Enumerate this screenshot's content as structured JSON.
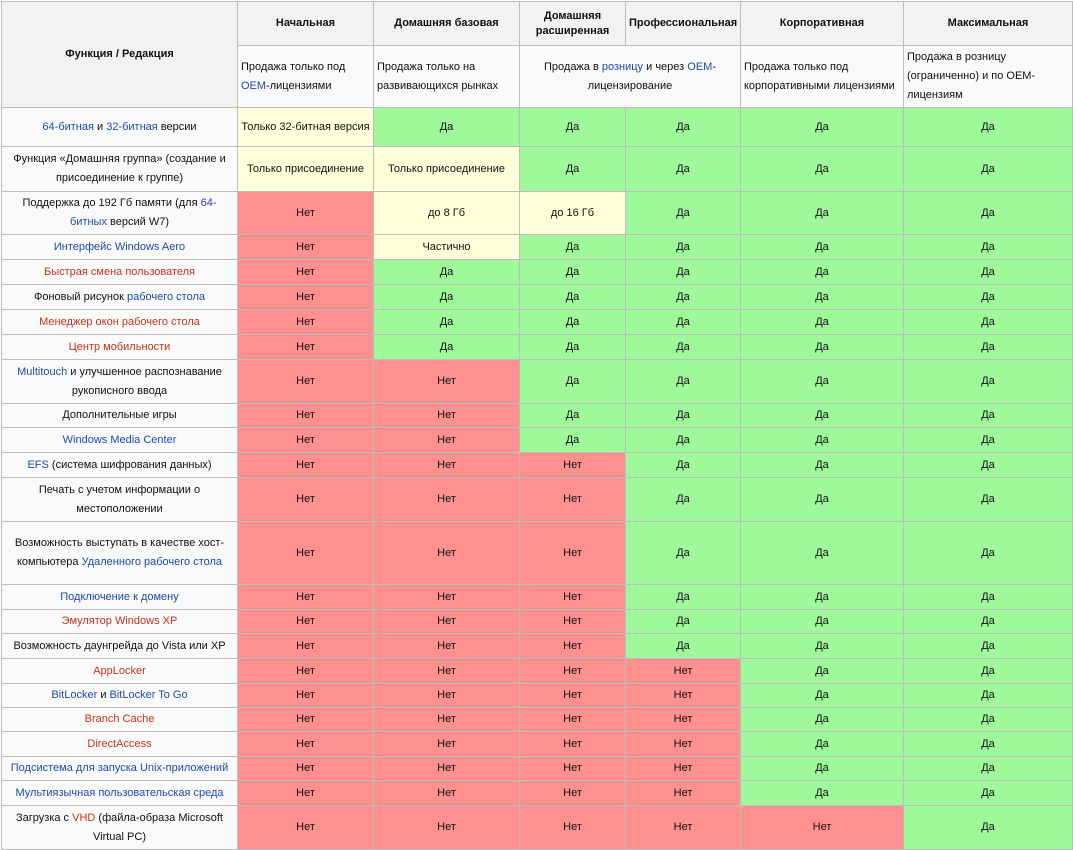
{
  "header": {
    "feature_col": "Функция / Редакция",
    "editions": [
      "Начальная",
      "Домашняя базовая",
      "Домашняя расширенная",
      "Профессиональная",
      "Корпоративная",
      "Максимальная"
    ],
    "notes": [
      [
        {
          "t": "Продажа только под "
        },
        {
          "t": "OEM",
          "c": "lnk"
        },
        {
          "t": "-лицензиями"
        }
      ],
      [
        {
          "t": "Продажа только на развивающихся рынках"
        }
      ],
      [
        {
          "t": "Продажа в "
        },
        {
          "t": "розницу",
          "c": "lnk"
        },
        {
          "t": " и через "
        },
        {
          "t": "OEM",
          "c": "lnk"
        },
        {
          "t": "-лицензирование"
        }
      ],
      [
        {
          "t": "Продажа только под корпоративными лицензиями"
        }
      ],
      [
        {
          "t": "Продажа в розницу (ограниченно) и по OEM-лицензиям"
        }
      ]
    ]
  },
  "rows": [
    {
      "h": 39,
      "feature": [
        {
          "t": "64-битная",
          "c": "lnk"
        },
        {
          "t": " и "
        },
        {
          "t": "32-битная",
          "c": "lnk"
        },
        {
          "t": " версии"
        }
      ],
      "cells": [
        {
          "v": "Только 32-битная версия",
          "s": "p"
        },
        {
          "v": "Да",
          "s": "y"
        },
        {
          "v": "Да",
          "s": "y"
        },
        {
          "v": "Да",
          "s": "y"
        },
        {
          "v": "Да",
          "s": "y"
        },
        {
          "v": "Да",
          "s": "y"
        }
      ]
    },
    {
      "h": 45,
      "feature": [
        {
          "t": "Функция «Домашняя группа» (создание и присоединение к группе)"
        }
      ],
      "cells": [
        {
          "v": "Только присоединение",
          "s": "p"
        },
        {
          "v": "Только присоединение",
          "s": "p"
        },
        {
          "v": "Да",
          "s": "y"
        },
        {
          "v": "Да",
          "s": "y"
        },
        {
          "v": "Да",
          "s": "y"
        },
        {
          "v": "Да",
          "s": "y"
        }
      ]
    },
    {
      "h": 42,
      "feature": [
        {
          "t": "Поддержка до 192 Гб памяти (для "
        },
        {
          "t": "64-битных",
          "c": "lnk"
        },
        {
          "t": " версий W7)"
        }
      ],
      "cells": [
        {
          "v": "Нет",
          "s": "n"
        },
        {
          "v": "до 8 Гб",
          "s": "p"
        },
        {
          "v": "до 16 Гб",
          "s": "p"
        },
        {
          "v": "Да",
          "s": "y"
        },
        {
          "v": "Да",
          "s": "y"
        },
        {
          "v": "Да",
          "s": "y"
        }
      ]
    },
    {
      "h": 25,
      "feature": [
        {
          "t": "Интерфейс Windows Aero",
          "c": "lnk"
        }
      ],
      "cells": [
        {
          "v": "Нет",
          "s": "n"
        },
        {
          "v": "Частично",
          "s": "p"
        },
        {
          "v": "Да",
          "s": "y"
        },
        {
          "v": "Да",
          "s": "y"
        },
        {
          "v": "Да",
          "s": "y"
        },
        {
          "v": "Да",
          "s": "y"
        }
      ]
    },
    {
      "h": 25,
      "feature": [
        {
          "t": "Быстрая смена пользователя",
          "c": "red"
        }
      ],
      "cells": [
        {
          "v": "Нет",
          "s": "n"
        },
        {
          "v": "Да",
          "s": "y"
        },
        {
          "v": "Да",
          "s": "y"
        },
        {
          "v": "Да",
          "s": "y"
        },
        {
          "v": "Да",
          "s": "y"
        },
        {
          "v": "Да",
          "s": "y"
        }
      ]
    },
    {
      "h": 25,
      "feature": [
        {
          "t": "Фоновый рисунок "
        },
        {
          "t": "рабочего стола",
          "c": "lnk"
        }
      ],
      "cells": [
        {
          "v": "Нет",
          "s": "n"
        },
        {
          "v": "Да",
          "s": "y"
        },
        {
          "v": "Да",
          "s": "y"
        },
        {
          "v": "Да",
          "s": "y"
        },
        {
          "v": "Да",
          "s": "y"
        },
        {
          "v": "Да",
          "s": "y"
        }
      ]
    },
    {
      "h": 25,
      "feature": [
        {
          "t": "Менеджер окон рабочего стола",
          "c": "red"
        }
      ],
      "cells": [
        {
          "v": "Нет",
          "s": "n"
        },
        {
          "v": "Да",
          "s": "y"
        },
        {
          "v": "Да",
          "s": "y"
        },
        {
          "v": "Да",
          "s": "y"
        },
        {
          "v": "Да",
          "s": "y"
        },
        {
          "v": "Да",
          "s": "y"
        }
      ]
    },
    {
      "h": 25,
      "feature": [
        {
          "t": "Центр мобильности",
          "c": "red"
        }
      ],
      "cells": [
        {
          "v": "Нет",
          "s": "n"
        },
        {
          "v": "Да",
          "s": "y"
        },
        {
          "v": "Да",
          "s": "y"
        },
        {
          "v": "Да",
          "s": "y"
        },
        {
          "v": "Да",
          "s": "y"
        },
        {
          "v": "Да",
          "s": "y"
        }
      ]
    },
    {
      "h": 44,
      "feature": [
        {
          "t": "Multitouch",
          "c": "lnk"
        },
        {
          "t": " и улучшенное распознавание рукописного ввода"
        }
      ],
      "cells": [
        {
          "v": "Нет",
          "s": "n"
        },
        {
          "v": "Нет",
          "s": "n"
        },
        {
          "v": "Да",
          "s": "y"
        },
        {
          "v": "Да",
          "s": "y"
        },
        {
          "v": "Да",
          "s": "y"
        },
        {
          "v": "Да",
          "s": "y"
        }
      ]
    },
    {
      "h": 24,
      "feature": [
        {
          "t": "Дополнительные игры"
        }
      ],
      "cells": [
        {
          "v": "Нет",
          "s": "n"
        },
        {
          "v": "Нет",
          "s": "n"
        },
        {
          "v": "Да",
          "s": "y"
        },
        {
          "v": "Да",
          "s": "y"
        },
        {
          "v": "Да",
          "s": "y"
        },
        {
          "v": "Да",
          "s": "y"
        }
      ]
    },
    {
      "h": 25,
      "feature": [
        {
          "t": "Windows Media Center",
          "c": "lnk"
        }
      ],
      "cells": [
        {
          "v": "Нет",
          "s": "n"
        },
        {
          "v": "Нет",
          "s": "n"
        },
        {
          "v": "Да",
          "s": "y"
        },
        {
          "v": "Да",
          "s": "y"
        },
        {
          "v": "Да",
          "s": "y"
        },
        {
          "v": "Да",
          "s": "y"
        }
      ]
    },
    {
      "h": 25,
      "feature": [
        {
          "t": "EFS",
          "c": "lnk"
        },
        {
          "t": " (система шифрования данных)"
        }
      ],
      "cells": [
        {
          "v": "Нет",
          "s": "n"
        },
        {
          "v": "Нет",
          "s": "n"
        },
        {
          "v": "Нет",
          "s": "n"
        },
        {
          "v": "Да",
          "s": "y"
        },
        {
          "v": "Да",
          "s": "y"
        },
        {
          "v": "Да",
          "s": "y"
        }
      ]
    },
    {
      "h": 44,
      "feature": [
        {
          "t": "Печать с учетом информации о местоположении"
        }
      ],
      "cells": [
        {
          "v": "Нет",
          "s": "n"
        },
        {
          "v": "Нет",
          "s": "n"
        },
        {
          "v": "Нет",
          "s": "n"
        },
        {
          "v": "Да",
          "s": "y"
        },
        {
          "v": "Да",
          "s": "y"
        },
        {
          "v": "Да",
          "s": "y"
        }
      ]
    },
    {
      "h": 63,
      "feature": [
        {
          "t": "Возможность выступать в качестве хост-компьютера "
        },
        {
          "t": "Удаленного рабочего стола",
          "c": "lnk"
        }
      ],
      "cells": [
        {
          "v": "Нет",
          "s": "n"
        },
        {
          "v": "Нет",
          "s": "n"
        },
        {
          "v": "Нет",
          "s": "n"
        },
        {
          "v": "Да",
          "s": "y"
        },
        {
          "v": "Да",
          "s": "y"
        },
        {
          "v": "Да",
          "s": "y"
        }
      ]
    },
    {
      "h": 25,
      "feature": [
        {
          "t": "Подключение к домену",
          "c": "lnk"
        }
      ],
      "cells": [
        {
          "v": "Нет",
          "s": "n"
        },
        {
          "v": "Нет",
          "s": "n"
        },
        {
          "v": "Нет",
          "s": "n"
        },
        {
          "v": "Да",
          "s": "y"
        },
        {
          "v": "Да",
          "s": "y"
        },
        {
          "v": "Да",
          "s": "y"
        }
      ]
    },
    {
      "h": 24,
      "feature": [
        {
          "t": "Эмулятор Windows XP",
          "c": "red"
        }
      ],
      "cells": [
        {
          "v": "Нет",
          "s": "n"
        },
        {
          "v": "Нет",
          "s": "n"
        },
        {
          "v": "Нет",
          "s": "n"
        },
        {
          "v": "Да",
          "s": "y"
        },
        {
          "v": "Да",
          "s": "y"
        },
        {
          "v": "Да",
          "s": "y"
        }
      ]
    },
    {
      "h": 25,
      "feature": [
        {
          "t": "Возможность даунгрейда до Vista или XP"
        }
      ],
      "cells": [
        {
          "v": "Нет",
          "s": "n"
        },
        {
          "v": "Нет",
          "s": "n"
        },
        {
          "v": "Нет",
          "s": "n"
        },
        {
          "v": "Да",
          "s": "y"
        },
        {
          "v": "Да",
          "s": "y"
        },
        {
          "v": "Да",
          "s": "y"
        }
      ]
    },
    {
      "h": 25,
      "feature": [
        {
          "t": "AppLocker",
          "c": "red"
        }
      ],
      "cells": [
        {
          "v": "Нет",
          "s": "n"
        },
        {
          "v": "Нет",
          "s": "n"
        },
        {
          "v": "Нет",
          "s": "n"
        },
        {
          "v": "Нет",
          "s": "n"
        },
        {
          "v": "Да",
          "s": "y"
        },
        {
          "v": "Да",
          "s": "y"
        }
      ]
    },
    {
      "h": 24,
      "feature": [
        {
          "t": "BitLocker",
          "c": "lnk"
        },
        {
          "t": " и "
        },
        {
          "t": "BitLocker To Go",
          "c": "lnk"
        }
      ],
      "cells": [
        {
          "v": "Нет",
          "s": "n"
        },
        {
          "v": "Нет",
          "s": "n"
        },
        {
          "v": "Нет",
          "s": "n"
        },
        {
          "v": "Нет",
          "s": "n"
        },
        {
          "v": "Да",
          "s": "y"
        },
        {
          "v": "Да",
          "s": "y"
        }
      ]
    },
    {
      "h": 24,
      "feature": [
        {
          "t": "Branch Cache",
          "c": "red"
        }
      ],
      "cells": [
        {
          "v": "Нет",
          "s": "n"
        },
        {
          "v": "Нет",
          "s": "n"
        },
        {
          "v": "Нет",
          "s": "n"
        },
        {
          "v": "Нет",
          "s": "n"
        },
        {
          "v": "Да",
          "s": "y"
        },
        {
          "v": "Да",
          "s": "y"
        }
      ]
    },
    {
      "h": 25,
      "feature": [
        {
          "t": "DirectAccess",
          "c": "red"
        }
      ],
      "cells": [
        {
          "v": "Нет",
          "s": "n"
        },
        {
          "v": "Нет",
          "s": "n"
        },
        {
          "v": "Нет",
          "s": "n"
        },
        {
          "v": "Нет",
          "s": "n"
        },
        {
          "v": "Да",
          "s": "y"
        },
        {
          "v": "Да",
          "s": "y"
        }
      ]
    },
    {
      "h": 24,
      "feature": [
        {
          "t": "Подсистема для запуска Unix-приложений",
          "c": "lnk"
        }
      ],
      "cells": [
        {
          "v": "Нет",
          "s": "n"
        },
        {
          "v": "Нет",
          "s": "n"
        },
        {
          "v": "Нет",
          "s": "n"
        },
        {
          "v": "Нет",
          "s": "n"
        },
        {
          "v": "Да",
          "s": "y"
        },
        {
          "v": "Да",
          "s": "y"
        }
      ]
    },
    {
      "h": 25,
      "feature": [
        {
          "t": "Мультиязычная пользовательская среда",
          "c": "lnk"
        }
      ],
      "cells": [
        {
          "v": "Нет",
          "s": "n"
        },
        {
          "v": "Нет",
          "s": "n"
        },
        {
          "v": "Нет",
          "s": "n"
        },
        {
          "v": "Нет",
          "s": "n"
        },
        {
          "v": "Да",
          "s": "y"
        },
        {
          "v": "Да",
          "s": "y"
        }
      ]
    },
    {
      "h": 44,
      "feature": [
        {
          "t": "Загрузка с "
        },
        {
          "t": "VHD",
          "c": "red"
        },
        {
          "t": " (файла-образа Microsoft Virtual PC)"
        }
      ],
      "cells": [
        {
          "v": "Нет",
          "s": "n"
        },
        {
          "v": "Нет",
          "s": "n"
        },
        {
          "v": "Нет",
          "s": "n"
        },
        {
          "v": "Нет",
          "s": "n"
        },
        {
          "v": "Нет",
          "s": "n"
        },
        {
          "v": "Да",
          "s": "y"
        }
      ]
    }
  ]
}
